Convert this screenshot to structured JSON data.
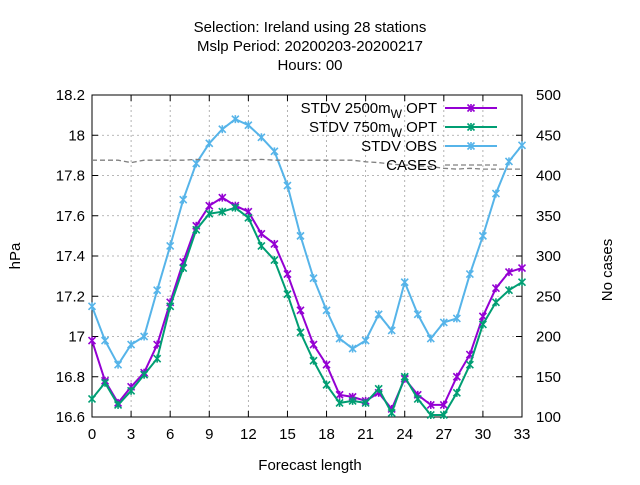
{
  "chart_data": {
    "type": "line",
    "title_lines": [
      "Selection: Ireland using    28 stations",
      "Mslp   Period: 20200203-20200217",
      "Hours:  00"
    ],
    "xlabel": "Forecast length",
    "ylabel": "hPa",
    "y2label": "No cases",
    "xlim": [
      0,
      33
    ],
    "ylim": [
      16.6,
      18.2
    ],
    "y2lim": [
      100,
      500
    ],
    "x_ticks": [
      0,
      3,
      6,
      9,
      12,
      15,
      18,
      21,
      24,
      27,
      30,
      33
    ],
    "y_ticks": [
      "16.6",
      "16.8",
      "17",
      "17.2",
      "17.4",
      "17.6",
      "17.8",
      "18",
      "18.2"
    ],
    "y2_ticks": [
      "100",
      "150",
      "200",
      "250",
      "300",
      "350",
      "400",
      "450",
      "500"
    ],
    "grid": true,
    "legend_position": "top-right",
    "x": [
      0,
      1,
      2,
      3,
      4,
      5,
      6,
      7,
      8,
      9,
      10,
      11,
      12,
      13,
      14,
      15,
      16,
      17,
      18,
      19,
      20,
      21,
      22,
      23,
      24,
      25,
      26,
      27,
      28,
      29,
      30,
      31,
      32,
      33
    ],
    "series": [
      {
        "name": "STDV 2500m",
        "name_sub": "W",
        "name_suffix": " OPT",
        "color": "#9400d3",
        "axis": "left",
        "values": [
          16.98,
          16.78,
          16.67,
          16.75,
          16.82,
          16.96,
          17.17,
          17.37,
          17.55,
          17.65,
          17.69,
          17.65,
          17.62,
          17.51,
          17.46,
          17.31,
          17.13,
          16.96,
          16.86,
          16.71,
          16.7,
          16.68,
          16.72,
          16.64,
          16.79,
          16.71,
          16.66,
          16.66,
          16.8,
          16.91,
          17.1,
          17.24,
          17.32,
          17.34
        ]
      },
      {
        "name": "STDV 750m",
        "name_sub": "W",
        "name_suffix": " OPT",
        "color": "#009e73",
        "axis": "left",
        "values": [
          16.69,
          16.77,
          16.66,
          16.73,
          16.81,
          16.89,
          17.15,
          17.34,
          17.53,
          17.61,
          17.62,
          17.64,
          17.59,
          17.45,
          17.38,
          17.21,
          17.02,
          16.88,
          16.76,
          16.67,
          16.68,
          16.67,
          16.74,
          16.62,
          16.8,
          16.69,
          16.61,
          16.61,
          16.72,
          16.86,
          17.06,
          17.17,
          17.23,
          17.27
        ]
      },
      {
        "name": "STDV OBS",
        "name_sub": "",
        "name_suffix": "",
        "color": "#56b4e9",
        "axis": "left",
        "values": [
          17.15,
          16.98,
          16.86,
          16.96,
          17.0,
          17.23,
          17.45,
          17.68,
          17.86,
          17.96,
          18.03,
          18.08,
          18.05,
          17.99,
          17.92,
          17.75,
          17.5,
          17.29,
          17.13,
          16.99,
          16.94,
          16.98,
          17.11,
          17.03,
          17.27,
          17.11,
          16.99,
          17.07,
          17.09,
          17.31,
          17.5,
          17.71,
          17.87,
          17.95
        ]
      },
      {
        "name": "CASES",
        "name_sub": "",
        "name_suffix": "",
        "color": "#808080",
        "axis": "right",
        "dashed": true,
        "x": [
          0,
          2,
          3,
          4,
          5,
          6,
          7,
          8,
          9,
          10,
          11,
          12,
          13,
          14,
          15,
          16,
          17,
          18,
          19,
          20,
          21,
          22,
          23,
          24,
          25,
          26,
          27,
          28,
          29,
          30,
          31,
          32,
          33
        ],
        "values": [
          419,
          419,
          416,
          419,
          419,
          419,
          419,
          420,
          419,
          419,
          419,
          419,
          420,
          419,
          419,
          419,
          419,
          419,
          419,
          419,
          417,
          416,
          414,
          413,
          412,
          411,
          409,
          408,
          409,
          408,
          408,
          408,
          408
        ]
      }
    ]
  }
}
